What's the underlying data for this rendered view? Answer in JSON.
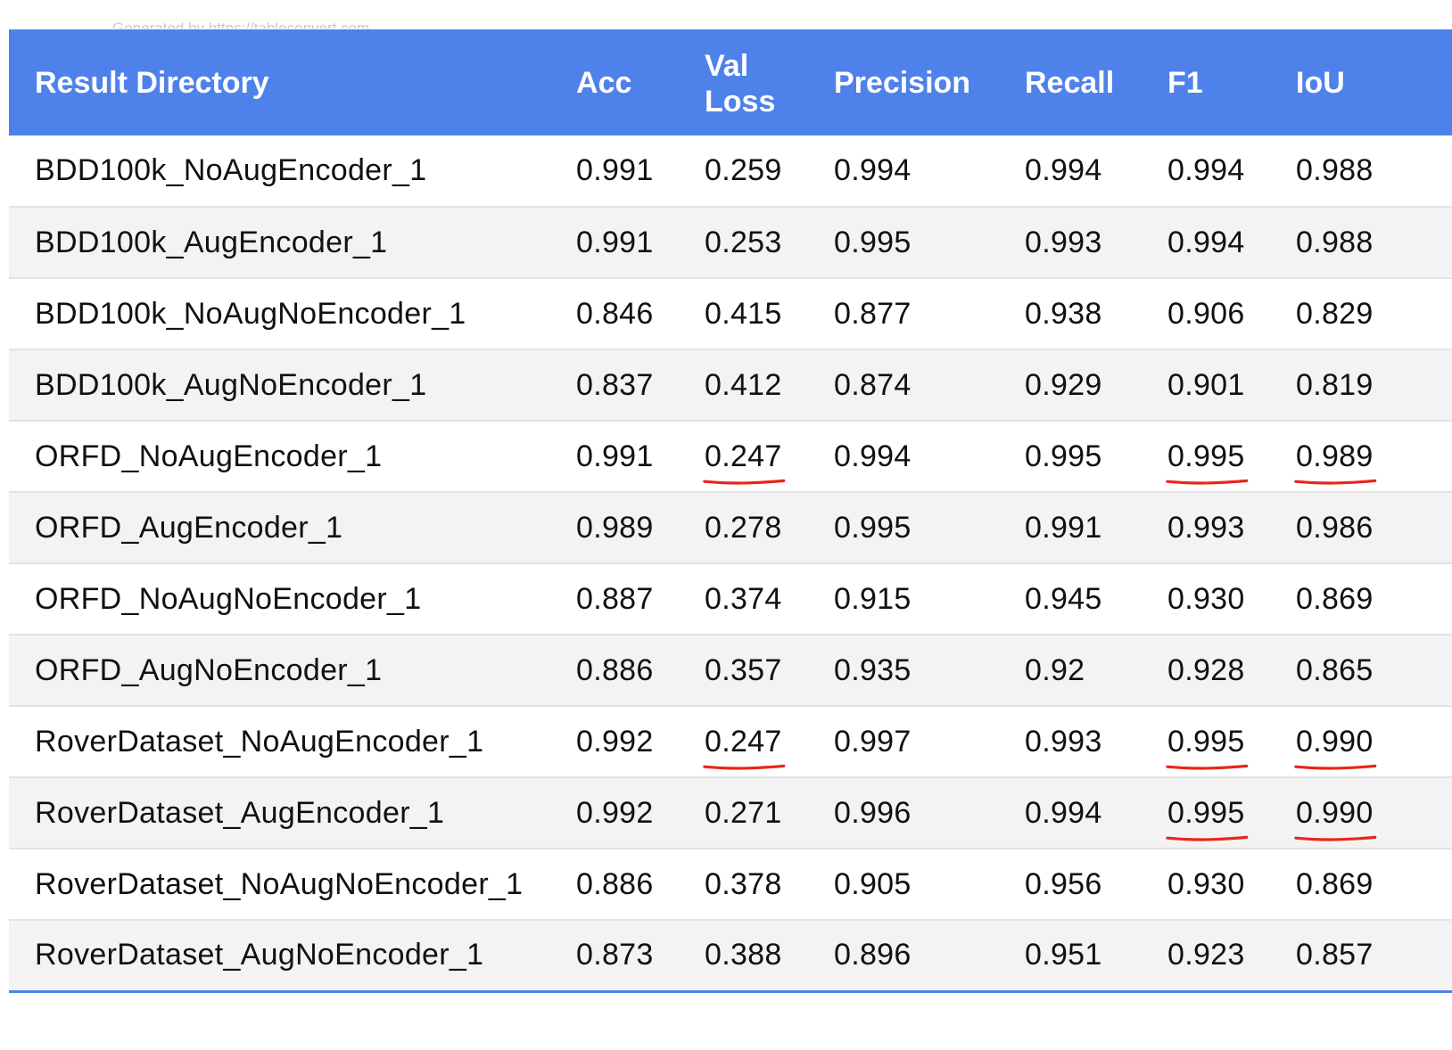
{
  "watermark": "Generated by https://tableconvert.com",
  "colors": {
    "header_bg": "#4f81ea",
    "header_text": "#ffffff",
    "row_stripe": "#f3f3f3",
    "underline_mark": "#e8261c"
  },
  "headers": [
    "Result Directory",
    "Acc",
    "Val Loss",
    "Precision",
    "Recall",
    "F1",
    "IoU"
  ],
  "header_lines": {
    "val_loss": [
      "Val",
      "Loss"
    ]
  },
  "rows": [
    {
      "cells": [
        "BDD100k_NoAugEncoder_1",
        "0.991",
        "0.259",
        "0.994",
        "0.994",
        "0.994",
        "0.988"
      ],
      "underlined": []
    },
    {
      "cells": [
        "BDD100k_AugEncoder_1",
        "0.991",
        "0.253",
        "0.995",
        "0.993",
        "0.994",
        "0.988"
      ],
      "underlined": []
    },
    {
      "cells": [
        "BDD100k_NoAugNoEncoder_1",
        "0.846",
        "0.415",
        "0.877",
        "0.938",
        "0.906",
        "0.829"
      ],
      "underlined": []
    },
    {
      "cells": [
        "BDD100k_AugNoEncoder_1",
        "0.837",
        "0.412",
        "0.874",
        "0.929",
        "0.901",
        "0.819"
      ],
      "underlined": []
    },
    {
      "cells": [
        "ORFD_NoAugEncoder_1",
        "0.991",
        "0.247",
        "0.994",
        "0.995",
        "0.995",
        "0.989"
      ],
      "underlined": [
        2,
        5,
        6
      ]
    },
    {
      "cells": [
        "ORFD_AugEncoder_1",
        "0.989",
        "0.278",
        "0.995",
        "0.991",
        "0.993",
        "0.986"
      ],
      "underlined": []
    },
    {
      "cells": [
        "ORFD_NoAugNoEncoder_1",
        "0.887",
        "0.374",
        "0.915",
        "0.945",
        "0.930",
        "0.869"
      ],
      "underlined": []
    },
    {
      "cells": [
        "ORFD_AugNoEncoder_1",
        "0.886",
        "0.357",
        "0.935",
        "0.92",
        "0.928",
        "0.865"
      ],
      "underlined": []
    },
    {
      "cells": [
        "RoverDataset_NoAugEncoder_1",
        "0.992",
        "0.247",
        "0.997",
        "0.993",
        "0.995",
        "0.990"
      ],
      "underlined": [
        2,
        5,
        6
      ]
    },
    {
      "cells": [
        "RoverDataset_AugEncoder_1",
        "0.992",
        "0.271",
        "0.996",
        "0.994",
        "0.995",
        "0.990"
      ],
      "underlined": [
        5,
        6
      ]
    },
    {
      "cells": [
        "RoverDataset_NoAugNoEncoder_1",
        "0.886",
        "0.378",
        "0.905",
        "0.956",
        "0.930",
        "0.869"
      ],
      "underlined": []
    },
    {
      "cells": [
        "RoverDataset_AugNoEncoder_1",
        "0.873",
        "0.388",
        "0.896",
        "0.951",
        "0.923",
        "0.857"
      ],
      "underlined": []
    }
  ]
}
